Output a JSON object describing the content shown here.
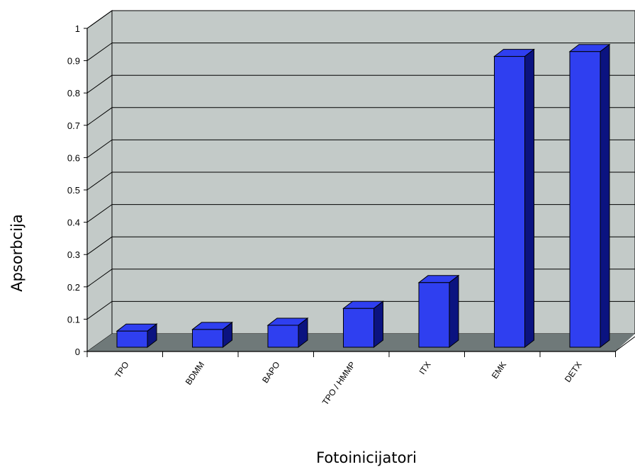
{
  "chart_data": {
    "type": "bar",
    "style": "3d",
    "categories": [
      "TPO",
      "BDMM",
      "BAPO",
      "TPO / HMMP",
      "ITX",
      "EMK",
      "DETX"
    ],
    "values": [
      0.05,
      0.055,
      0.068,
      0.12,
      0.2,
      0.9,
      0.915
    ],
    "xlabel": "Fotoinicijatori",
    "ylabel": "Apsorbcija",
    "ylim": [
      0,
      1
    ],
    "yticks": [
      "0",
      "0.1",
      "0.2",
      "0.3",
      "0.4",
      "0.5",
      "0.6",
      "0.7",
      "0.8",
      "0.9",
      "1"
    ],
    "grid": true,
    "legend": "none",
    "colors": {
      "bar_front": "#2f3ff0",
      "bar_top": "#2f3ff0",
      "bar_side": "#0b1380",
      "wall": "#c3cac8",
      "floor": "#6f7979",
      "grid": "#000000"
    }
  }
}
